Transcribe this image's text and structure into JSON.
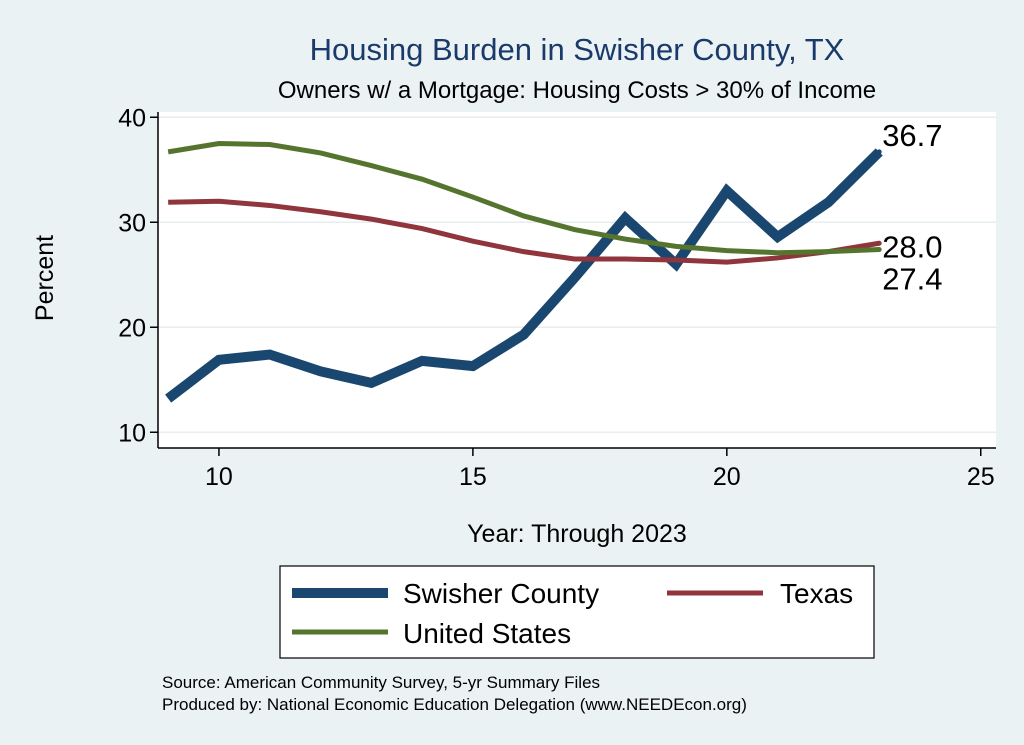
{
  "chart_data": {
    "type": "line",
    "title": "Housing Burden in Swisher County, TX",
    "subtitle": "Owners w/ a Mortgage: Housing Costs > 30% of Income",
    "xlabel": "Year: Through 2023",
    "ylabel": "Percent",
    "xlim": [
      8.8,
      25.3
    ],
    "ylim": [
      8.5,
      40.5
    ],
    "xticks": [
      10,
      15,
      20,
      25
    ],
    "yticks": [
      10,
      20,
      30,
      40
    ],
    "grid": true,
    "legend_position": "bottom",
    "series": [
      {
        "name": "Swisher County",
        "color": "#1a476f",
        "x": [
          9,
          10,
          11,
          12,
          13,
          14,
          15,
          16,
          17,
          18,
          19,
          20,
          21,
          22,
          23
        ],
        "values": [
          13.2,
          16.9,
          17.4,
          15.8,
          14.7,
          16.8,
          16.3,
          19.3,
          24.7,
          30.4,
          26.0,
          33.0,
          28.6,
          31.9,
          36.7
        ],
        "end_label": "36.7"
      },
      {
        "name": "Texas",
        "color": "#90353b",
        "x": [
          9,
          10,
          11,
          12,
          13,
          14,
          15,
          16,
          17,
          18,
          19,
          20,
          21,
          22,
          23
        ],
        "values": [
          31.9,
          32.0,
          31.6,
          31.0,
          30.3,
          29.4,
          28.2,
          27.2,
          26.5,
          26.5,
          26.4,
          26.2,
          26.6,
          27.2,
          28.0
        ],
        "end_label": "28.0"
      },
      {
        "name": "United States",
        "color": "#55752f",
        "x": [
          9,
          10,
          11,
          12,
          13,
          14,
          15,
          16,
          17,
          18,
          19,
          20,
          21,
          22,
          23
        ],
        "values": [
          36.7,
          37.5,
          37.4,
          36.6,
          35.4,
          34.1,
          32.4,
          30.6,
          29.3,
          28.4,
          27.7,
          27.3,
          27.1,
          27.2,
          27.4
        ],
        "end_label": "27.4"
      }
    ],
    "source_lines": [
      "Source: American Community Survey, 5-yr Summary Files",
      "Produced by: National Economic Education Delegation (www.NEEDEcon.org)"
    ]
  }
}
